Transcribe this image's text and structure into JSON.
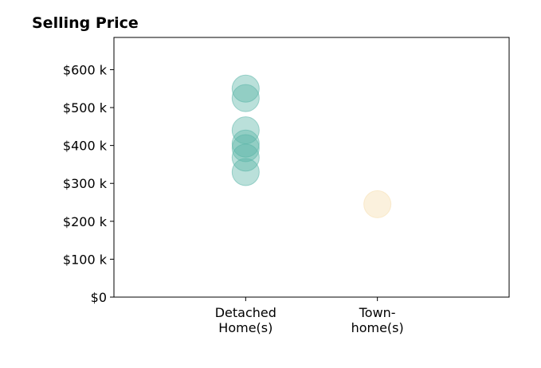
{
  "chart_data": {
    "type": "scatter",
    "title": "Selling Price",
    "xlabel": "",
    "ylabel": "",
    "categories": [
      {
        "lines": [
          "Detached",
          "Home(s)"
        ]
      },
      {
        "lines": [
          "Town-",
          "home(s)"
        ]
      }
    ],
    "xlim": [
      0,
      3
    ],
    "ylim": [
      0,
      685000
    ],
    "yticks": [
      0,
      100000,
      200000,
      300000,
      400000,
      500000,
      600000
    ],
    "ytick_labels": [
      "$0",
      "$100 k",
      "$200 k",
      "$300 k",
      "$400 k",
      "$500 k",
      "$600 k"
    ],
    "grid": false,
    "series": [
      {
        "color": "#5ab4a8",
        "points": [
          {
            "x": 1,
            "y": 550000
          },
          {
            "x": 1,
            "y": 525000
          },
          {
            "x": 1,
            "y": 440000
          },
          {
            "x": 1,
            "y": 405000
          },
          {
            "x": 1,
            "y": 393000
          },
          {
            "x": 1,
            "y": 368000
          },
          {
            "x": 1,
            "y": 330000
          }
        ]
      },
      {
        "color": "#f5deae",
        "points": [
          {
            "x": 2,
            "y": 245000
          }
        ]
      }
    ]
  }
}
